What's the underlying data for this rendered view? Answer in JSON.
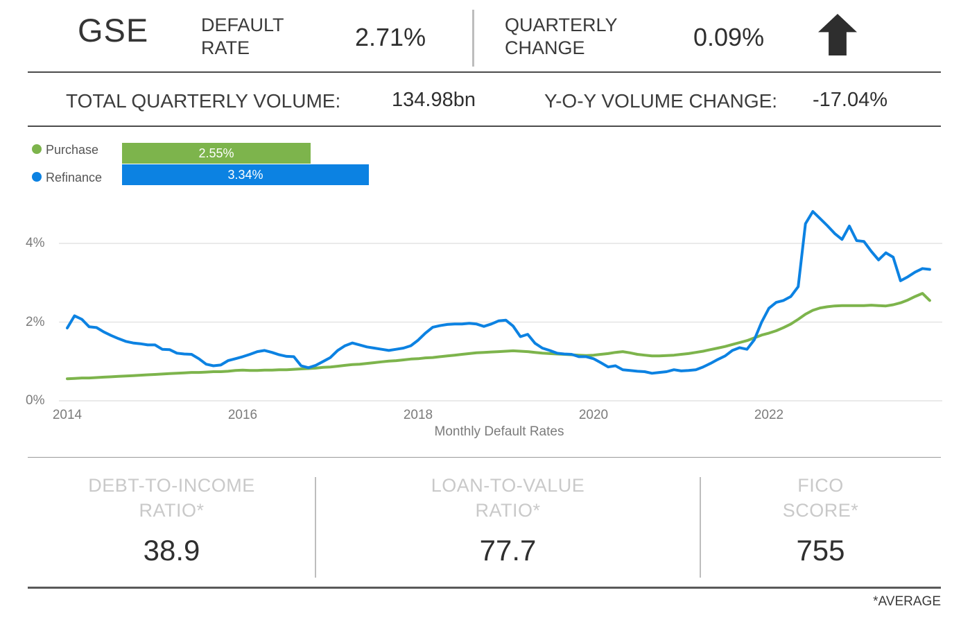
{
  "header": {
    "title": "GSE",
    "default_rate_label": "DEFAULT RATE",
    "default_rate_value": "2.71%",
    "quarterly_change_label": "QUARTERLY CHANGE",
    "quarterly_change_value": "0.09%",
    "quarterly_change_direction": "up"
  },
  "volume_row": {
    "total_label": "TOTAL QUARTERLY VOLUME:",
    "total_value": "134.98bn",
    "yoy_label": "Y-O-Y VOLUME CHANGE:",
    "yoy_value": "-17.04%"
  },
  "legend": {
    "items": [
      {
        "label": "Purchase",
        "value_label": "2.55%",
        "value_num": 2.55,
        "color": "#7db44c"
      },
      {
        "label": "Refinance",
        "value_label": "3.34%",
        "value_num": 3.34,
        "color": "#0c82e2"
      }
    ]
  },
  "chart_data": {
    "type": "line",
    "title": "Monthly Default Rates",
    "xlabel": "Monthly Default Rates",
    "ylabel": "",
    "x_start_month": "2014-01",
    "x_end_month": "2023-11",
    "x_cadence": "monthly",
    "x_tick_labels": [
      "2014",
      "2016",
      "2018",
      "2020",
      "2022"
    ],
    "y_tick_labels": [
      "0%",
      "2%",
      "4%"
    ],
    "ylim": [
      0,
      5
    ],
    "grid": true,
    "legend_position": "top-left",
    "series": [
      {
        "name": "Purchase",
        "color": "#7db44c",
        "final_value_pct": 2.55,
        "values": [
          0.56,
          0.57,
          0.58,
          0.58,
          0.59,
          0.6,
          0.61,
          0.62,
          0.63,
          0.64,
          0.65,
          0.66,
          0.67,
          0.68,
          0.69,
          0.7,
          0.71,
          0.72,
          0.72,
          0.73,
          0.74,
          0.74,
          0.75,
          0.77,
          0.78,
          0.77,
          0.77,
          0.78,
          0.78,
          0.79,
          0.79,
          0.8,
          0.81,
          0.82,
          0.83,
          0.85,
          0.86,
          0.88,
          0.9,
          0.92,
          0.93,
          0.95,
          0.97,
          0.99,
          1.01,
          1.02,
          1.04,
          1.06,
          1.07,
          1.09,
          1.1,
          1.12,
          1.14,
          1.16,
          1.18,
          1.2,
          1.22,
          1.23,
          1.24,
          1.25,
          1.26,
          1.27,
          1.26,
          1.25,
          1.23,
          1.21,
          1.2,
          1.19,
          1.18,
          1.17,
          1.16,
          1.15,
          1.16,
          1.18,
          1.2,
          1.23,
          1.25,
          1.22,
          1.18,
          1.16,
          1.14,
          1.14,
          1.15,
          1.16,
          1.18,
          1.2,
          1.23,
          1.26,
          1.3,
          1.34,
          1.38,
          1.43,
          1.48,
          1.53,
          1.6,
          1.67,
          1.72,
          1.78,
          1.86,
          1.95,
          2.07,
          2.2,
          2.3,
          2.36,
          2.39,
          2.41,
          2.42,
          2.42,
          2.42,
          2.42,
          2.43,
          2.42,
          2.41,
          2.44,
          2.49,
          2.56,
          2.65,
          2.73,
          2.55
        ]
      },
      {
        "name": "Refinance",
        "color": "#0c82e2",
        "final_value_pct": 3.34,
        "values": [
          1.85,
          2.16,
          2.07,
          1.88,
          1.86,
          1.75,
          1.66,
          1.58,
          1.51,
          1.47,
          1.45,
          1.42,
          1.42,
          1.31,
          1.3,
          1.21,
          1.19,
          1.18,
          1.07,
          0.93,
          0.89,
          0.91,
          1.02,
          1.07,
          1.12,
          1.18,
          1.25,
          1.28,
          1.23,
          1.17,
          1.13,
          1.12,
          0.89,
          0.84,
          0.9,
          1.0,
          1.1,
          1.28,
          1.4,
          1.47,
          1.42,
          1.37,
          1.34,
          1.31,
          1.28,
          1.31,
          1.34,
          1.4,
          1.54,
          1.72,
          1.87,
          1.91,
          1.94,
          1.95,
          1.95,
          1.97,
          1.95,
          1.89,
          1.95,
          2.03,
          2.05,
          1.9,
          1.63,
          1.69,
          1.46,
          1.34,
          1.28,
          1.21,
          1.19,
          1.18,
          1.12,
          1.12,
          1.07,
          0.97,
          0.86,
          0.89,
          0.79,
          0.77,
          0.75,
          0.74,
          0.7,
          0.72,
          0.74,
          0.79,
          0.76,
          0.77,
          0.79,
          0.86,
          0.95,
          1.05,
          1.14,
          1.28,
          1.35,
          1.31,
          1.55,
          2.0,
          2.35,
          2.5,
          2.55,
          2.65,
          2.9,
          4.5,
          4.81,
          4.63,
          4.45,
          4.25,
          4.1,
          4.44,
          4.07,
          4.05,
          3.8,
          3.58,
          3.76,
          3.65,
          3.05,
          3.15,
          3.27,
          3.36,
          3.34
        ]
      }
    ]
  },
  "stats": {
    "items": [
      {
        "line1": "DEBT-TO-INCOME",
        "line2": "RATIO*",
        "value": "38.9"
      },
      {
        "line1": "LOAN-TO-VALUE",
        "line2": "RATIO*",
        "value": "77.7"
      },
      {
        "line1": "FICO",
        "line2": "SCORE*",
        "value": "755"
      }
    ],
    "footnote": "*AVERAGE"
  },
  "colors": {
    "purchase_green": "#7db44c",
    "refinance_blue": "#0c82e2",
    "dark_text": "#2f2f2f",
    "muted_text": "#7b7b7b",
    "faint_label": "#c9c9c9",
    "gridline": "#e4e4e4",
    "rule_dark": "#4b4b4b"
  }
}
